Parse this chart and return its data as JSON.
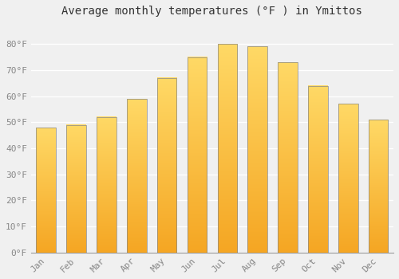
{
  "title": "Average monthly temperatures (°F ) in Ymittos",
  "months": [
    "Jan",
    "Feb",
    "Mar",
    "Apr",
    "May",
    "Jun",
    "Jul",
    "Aug",
    "Sep",
    "Oct",
    "Nov",
    "Dec"
  ],
  "values": [
    48,
    49,
    52,
    59,
    67,
    75,
    80,
    79,
    73,
    64,
    57,
    51
  ],
  "bar_color_bottom": "#F5A623",
  "bar_color_top": "#FFD966",
  "bar_edge_color": "#888888",
  "ylim": [
    0,
    88
  ],
  "yticks": [
    0,
    10,
    20,
    30,
    40,
    50,
    60,
    70,
    80
  ],
  "ytick_labels": [
    "0°F",
    "10°F",
    "20°F",
    "30°F",
    "40°F",
    "50°F",
    "60°F",
    "70°F",
    "80°F"
  ],
  "background_color": "#f0f0f0",
  "grid_color": "#ffffff",
  "title_fontsize": 10,
  "tick_fontsize": 8,
  "tick_color": "#888888",
  "font_family": "monospace"
}
